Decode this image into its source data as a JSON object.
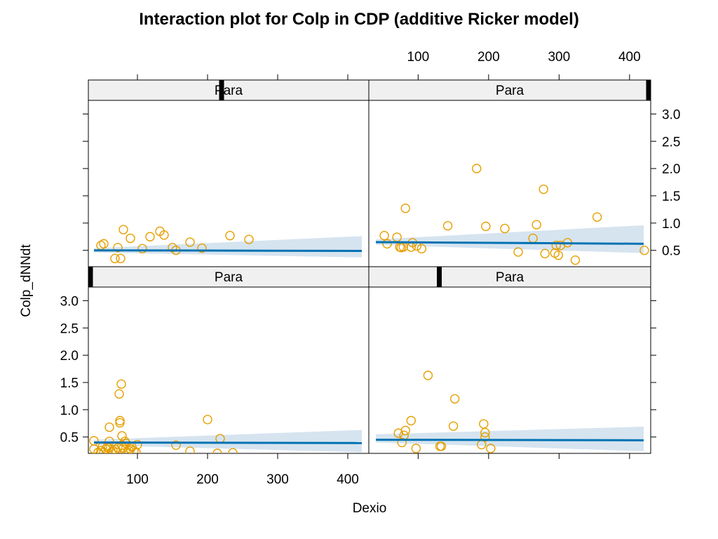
{
  "chart_data": {
    "type": "scatter",
    "title": "Interaction plot for Colp in CDP (additive Ricker model)",
    "xlabel": "Dexio",
    "ylabel": "Colp_dNNdt",
    "x_ticks": [
      100,
      200,
      300,
      400
    ],
    "y_ticks": [
      0.5,
      1.0,
      1.5,
      2.0,
      2.5,
      3.0
    ],
    "y_tick_labels": [
      "0.5",
      "1.0",
      "1.5",
      "2.0",
      "2.5",
      "3.0"
    ],
    "colors": {
      "points": "#E69F00",
      "fit": "#0072B2",
      "band": "#D6E4F0",
      "strip_bg": "#F0F0F0"
    },
    "panels": [
      {
        "strip": "Para",
        "position": "top-left",
        "strip_marker_x": 220,
        "xlim": [
          30,
          430
        ],
        "ylim": [
          0.2,
          3.25
        ],
        "points": [
          [
            48,
            0.59
          ],
          [
            52,
            0.62
          ],
          [
            68,
            0.35
          ],
          [
            72,
            0.55
          ],
          [
            76,
            0.35
          ],
          [
            80,
            0.88
          ],
          [
            90,
            0.72
          ],
          [
            107,
            0.53
          ],
          [
            118,
            0.75
          ],
          [
            132,
            0.85
          ],
          [
            138,
            0.78
          ],
          [
            150,
            0.55
          ],
          [
            155,
            0.5
          ],
          [
            175,
            0.65
          ],
          [
            192,
            0.54
          ],
          [
            232,
            0.77
          ],
          [
            259,
            0.7
          ]
        ],
        "fit": {
          "x": [
            38,
            420
          ],
          "y": [
            0.5,
            0.49
          ],
          "band_lower": [
            0.46,
            0.37
          ],
          "band_upper": [
            0.54,
            0.76
          ]
        }
      },
      {
        "strip": "Para",
        "position": "top-right",
        "strip_marker_x": 430,
        "xlim": [
          30,
          430
        ],
        "ylim": [
          0.2,
          3.25
        ],
        "points": [
          [
            52,
            0.77
          ],
          [
            56,
            0.62
          ],
          [
            70,
            0.74
          ],
          [
            74,
            0.56
          ],
          [
            76,
            0.55
          ],
          [
            79,
            0.56
          ],
          [
            82,
            1.27
          ],
          [
            90,
            0.56
          ],
          [
            92,
            0.64
          ],
          [
            98,
            0.58
          ],
          [
            105,
            0.53
          ],
          [
            142,
            0.95
          ],
          [
            183,
            2.0
          ],
          [
            196,
            0.94
          ],
          [
            223,
            0.9
          ],
          [
            242,
            0.47
          ],
          [
            263,
            0.72
          ],
          [
            268,
            0.97
          ],
          [
            278,
            1.62
          ],
          [
            280,
            0.44
          ],
          [
            294,
            0.45
          ],
          [
            296,
            0.59
          ],
          [
            299,
            0.41
          ],
          [
            302,
            0.59
          ],
          [
            312,
            0.64
          ],
          [
            323,
            0.32
          ],
          [
            354,
            1.11
          ],
          [
            421,
            0.5
          ]
        ],
        "fit": {
          "x": [
            40,
            420
          ],
          "y": [
            0.65,
            0.62
          ],
          "band_lower": [
            0.6,
            0.45
          ],
          "band_upper": [
            0.7,
            0.96
          ]
        }
      },
      {
        "strip": "Para",
        "position": "bottom-left",
        "strip_marker_x": 30,
        "xlim": [
          30,
          430
        ],
        "ylim": [
          0.2,
          3.25
        ],
        "points": [
          [
            38,
            0.43
          ],
          [
            38,
            0.28
          ],
          [
            44,
            0.22
          ],
          [
            48,
            0.25
          ],
          [
            50,
            0.32
          ],
          [
            52,
            0.22
          ],
          [
            55,
            0.28
          ],
          [
            57,
            0.32
          ],
          [
            59,
            0.3
          ],
          [
            60,
            0.68
          ],
          [
            60,
            0.42
          ],
          [
            63,
            0.22
          ],
          [
            65,
            0.25
          ],
          [
            68,
            0.27
          ],
          [
            70,
            0.22
          ],
          [
            72,
            0.3
          ],
          [
            74,
            1.29
          ],
          [
            75,
            0.8
          ],
          [
            75,
            0.76
          ],
          [
            77,
            1.47
          ],
          [
            78,
            0.52
          ],
          [
            78,
            0.35
          ],
          [
            80,
            0.3
          ],
          [
            82,
            0.42
          ],
          [
            84,
            0.38
          ],
          [
            86,
            0.22
          ],
          [
            88,
            0.25
          ],
          [
            90,
            0.28
          ],
          [
            92,
            0.32
          ],
          [
            95,
            0.25
          ],
          [
            98,
            0.22
          ],
          [
            100,
            0.36
          ],
          [
            155,
            0.35
          ],
          [
            175,
            0.24
          ],
          [
            200,
            0.82
          ],
          [
            218,
            0.47
          ],
          [
            236,
            0.21
          ],
          [
            214,
            0.2
          ]
        ],
        "fit": {
          "x": [
            38,
            420
          ],
          "y": [
            0.4,
            0.39
          ],
          "band_lower": [
            0.35,
            0.22
          ],
          "band_upper": [
            0.45,
            0.63
          ]
        }
      },
      {
        "strip": "Para",
        "position": "bottom-right",
        "strip_marker_x": 130,
        "xlim": [
          30,
          430
        ],
        "ylim": [
          0.2,
          3.25
        ],
        "points": [
          [
            72,
            0.57
          ],
          [
            77,
            0.4
          ],
          [
            80,
            0.53
          ],
          [
            82,
            0.62
          ],
          [
            90,
            0.8
          ],
          [
            97,
            0.29
          ],
          [
            114,
            1.63
          ],
          [
            131,
            0.33
          ],
          [
            133,
            0.33
          ],
          [
            150,
            0.7
          ],
          [
            152,
            1.2
          ],
          [
            190,
            0.36
          ],
          [
            193,
            0.74
          ],
          [
            195,
            0.58
          ],
          [
            195,
            0.5
          ],
          [
            203,
            0.29
          ]
        ],
        "fit": {
          "x": [
            40,
            420
          ],
          "y": [
            0.45,
            0.44
          ],
          "band_lower": [
            0.4,
            0.24
          ],
          "band_upper": [
            0.55,
            0.69
          ]
        }
      }
    ]
  }
}
